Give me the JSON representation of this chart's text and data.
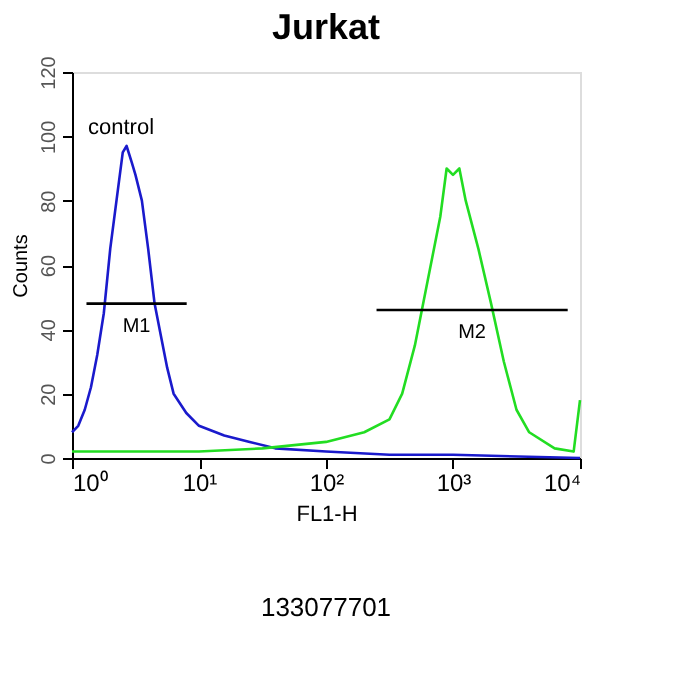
{
  "chart_data": {
    "type": "line",
    "title": "Jurkat",
    "xlabel": "FL1-H",
    "ylabel": "Counts",
    "log": "x",
    "xlim": [
      1,
      10000
    ],
    "xticks": [
      {
        "value": 1,
        "label": "10⁰"
      },
      {
        "value": 10,
        "label": "10¹"
      },
      {
        "value": 100,
        "label": "10²"
      },
      {
        "value": 1000,
        "label": "10³"
      },
      {
        "value": 10000,
        "label": "10⁴"
      }
    ],
    "ylim": [
      0,
      120
    ],
    "yticks": [
      0,
      20,
      40,
      60,
      80,
      100,
      120
    ],
    "grid": false,
    "legend": false,
    "series": [
      {
        "color": "#1a1acc",
        "x": [
          1,
          1.12,
          1.26,
          1.41,
          1.58,
          1.78,
          2,
          2.24,
          2.51,
          2.69,
          2.95,
          3.16,
          3.55,
          3.98,
          4.47,
          5.01,
          5.62,
          6.31,
          7.94,
          10,
          15.8,
          25.1,
          39.8,
          100,
          316,
          1000,
          10000
        ],
        "values": [
          8,
          10,
          15,
          22,
          32,
          45,
          65,
          80,
          95,
          97,
          92,
          88,
          80,
          65,
          48,
          38,
          28,
          20,
          14,
          10,
          7,
          5,
          3,
          2,
          1,
          1,
          0
        ]
      },
      {
        "color": "#22dd22",
        "x": [
          1,
          10,
          31.6,
          100,
          200,
          316,
          398,
          501,
          631,
          794,
          891,
          1000,
          1122,
          1259,
          1585,
          1995,
          2512,
          3162,
          3981,
          6310,
          8913,
          10000
        ],
        "values": [
          2,
          2,
          3,
          5,
          8,
          12,
          20,
          35,
          55,
          75,
          90,
          88,
          90,
          80,
          65,
          48,
          30,
          15,
          8,
          3,
          2,
          18
        ]
      },
      {
        "name": "M1",
        "color": "#000000",
        "x": [
          1.3,
          8
        ],
        "values": [
          48,
          48
        ]
      },
      {
        "name": "M2",
        "color": "#000000",
        "x": [
          250,
          8000
        ],
        "values": [
          46,
          46
        ]
      }
    ],
    "annotations": [
      "control",
      "133077701"
    ]
  }
}
